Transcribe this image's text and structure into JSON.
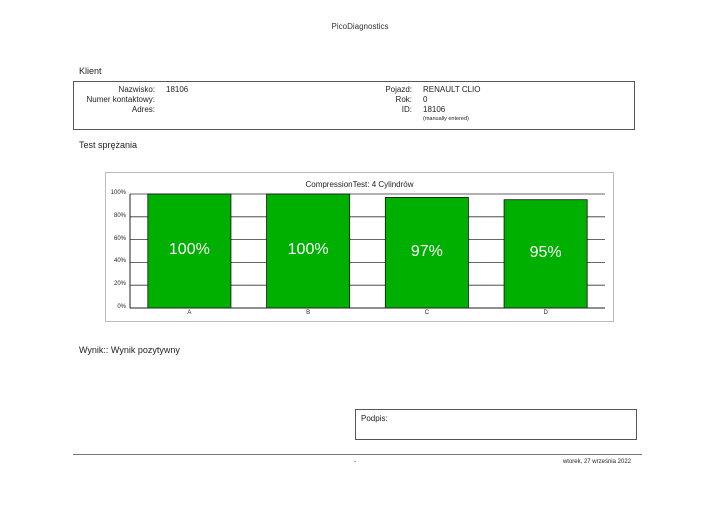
{
  "app_title": "PicoDiagnostics",
  "client": {
    "heading": "Klient",
    "surname_label": "Nazwisko:",
    "surname_value": "18106",
    "contact_label": "Numer kontaktowy:",
    "contact_value": "",
    "address_label": "Adres:",
    "address_value": "",
    "vehicle_label": "Pojazd:",
    "vehicle_value": "RENAULT CLIO",
    "year_label": "Rok:",
    "year_value": "0",
    "id_label": "ID:",
    "id_value": "18106",
    "id_note": "(manually entered)"
  },
  "test": {
    "heading": "Test sprężania"
  },
  "chart_data": {
    "type": "bar",
    "title": "CompressionTest: 4 Cylindrów",
    "categories": [
      "A",
      "B",
      "C",
      "D"
    ],
    "values": [
      100,
      100,
      97,
      95
    ],
    "value_labels": [
      "100%",
      "100%",
      "97%",
      "95%"
    ],
    "y_ticks": [
      "0%",
      "20%",
      "40%",
      "60%",
      "80%",
      "100%"
    ],
    "ylim": [
      0,
      100
    ],
    "xlabel": "",
    "ylabel": "",
    "grid": true,
    "bar_color": "#00b000"
  },
  "result": {
    "text": "Wynik:: Wynik pozytywny"
  },
  "signature": {
    "label": "Podpis:"
  },
  "footer": {
    "page": "-",
    "date": "wtorek, 27 września 2022"
  }
}
